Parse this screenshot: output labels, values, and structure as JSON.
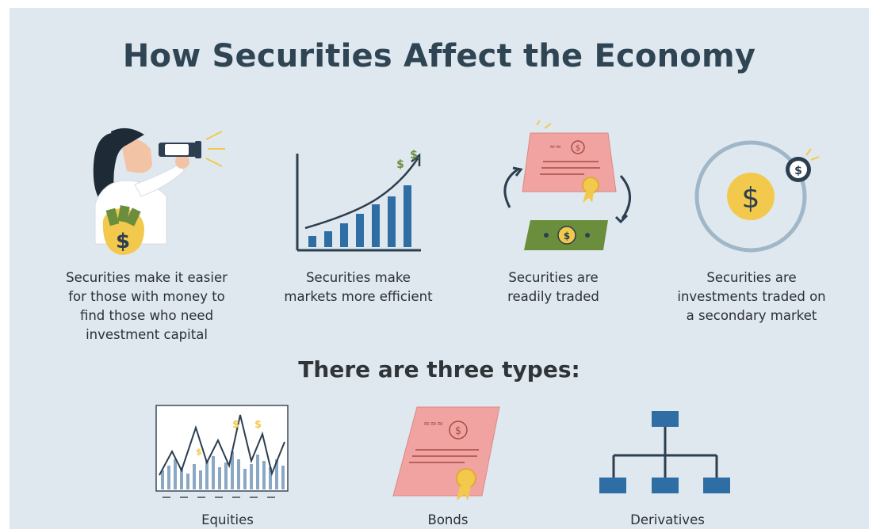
{
  "title": "How Securities Affect the Economy",
  "features": [
    {
      "icon": "binoculars-woman-icon",
      "text": "Securities make it easier\nfor those with money to\nfind those who need\ninvestment capital"
    },
    {
      "icon": "growth-bar-chart-icon",
      "text": "Securities make\nmarkets more efficient"
    },
    {
      "icon": "certificate-exchange-icon",
      "text": "Securities are\nreadily traded"
    },
    {
      "icon": "coin-orbit-icon",
      "text": "Securities are\ninvestments traded on\na secondary market"
    }
  ],
  "types_heading": "There are three types:",
  "types": [
    {
      "icon": "stock-chart-icon",
      "label": "Equities"
    },
    {
      "icon": "bond-certificate-icon",
      "label": "Bonds"
    },
    {
      "icon": "hierarchy-icon",
      "label": "Derivatives"
    }
  ],
  "colors": {
    "background": "#dfe8ef",
    "title": "#2f4554",
    "navy": "#2c3e50",
    "blue": "#2f6ea5",
    "pink": "#f0a3a0",
    "gold": "#f2c94c",
    "green": "#6b8e3d"
  }
}
